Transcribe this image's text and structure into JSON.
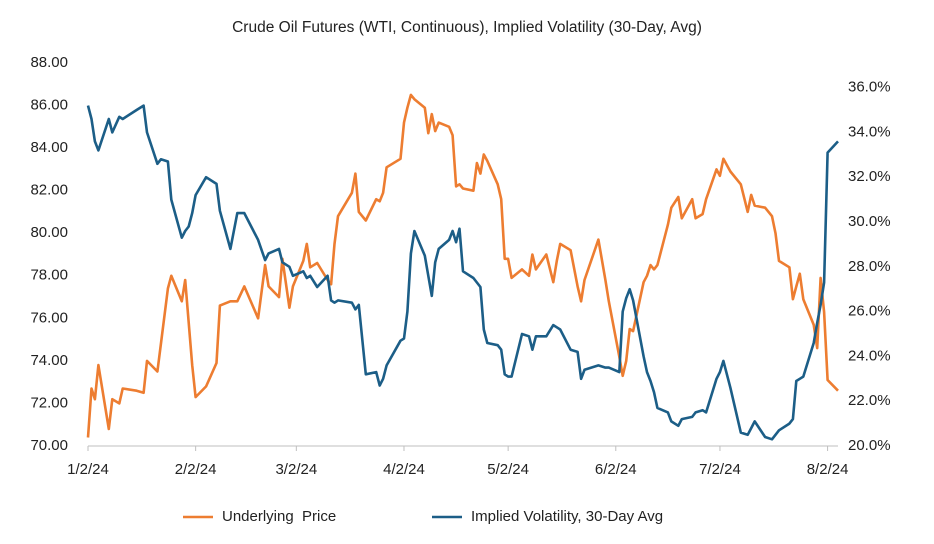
{
  "chart_data": {
    "type": "line",
    "title": "Crude Oil Futures (WTI, Continuous), Implied Volatility  (30-Day, Avg)",
    "x": [
      "1/2/24",
      "1/3/24",
      "1/4/24",
      "1/5/24",
      "1/8/24",
      "1/9/24",
      "1/11/24",
      "1/12/24",
      "1/16/24",
      "1/18/24",
      "1/19/24",
      "1/22/24",
      "1/23/24",
      "1/25/24",
      "1/26/24",
      "1/29/24",
      "1/30/24",
      "1/31/24",
      "2/1/24",
      "2/2/24",
      "2/5/24",
      "2/8/24",
      "2/9/24",
      "2/12/24",
      "2/14/24",
      "2/16/24",
      "2/20/24",
      "2/22/24",
      "2/23/24",
      "2/26/24",
      "2/27/24",
      "2/29/24",
      "3/1/24",
      "3/4/24",
      "3/5/24",
      "3/6/24",
      "3/8/24",
      "3/11/24",
      "3/12/24",
      "3/13/24",
      "3/14/24",
      "3/18/24",
      "3/19/24",
      "3/20/24",
      "3/22/24",
      "3/25/24",
      "3/26/24",
      "3/27/24",
      "3/28/24",
      "4/1/24",
      "4/2/24",
      "4/3/24",
      "4/4/24",
      "4/5/24",
      "4/8/24",
      "4/9/24",
      "4/10/24",
      "4/11/24",
      "4/12/24",
      "4/15/24",
      "4/16/24",
      "4/17/24",
      "4/18/24",
      "4/19/24",
      "4/22/24",
      "4/23/24",
      "4/24/24",
      "4/25/24",
      "4/26/24",
      "4/29/24",
      "4/30/24",
      "5/1/24",
      "5/2/24",
      "5/3/24",
      "5/6/24",
      "5/8/24",
      "5/9/24",
      "5/10/24",
      "5/13/24",
      "5/15/24",
      "5/16/24",
      "5/17/24",
      "5/20/24",
      "5/22/24",
      "5/23/24",
      "5/24/24",
      "5/28/24",
      "5/30/24",
      "5/31/24",
      "6/3/24",
      "6/4/24",
      "6/5/24",
      "6/6/24",
      "6/7/24",
      "6/10/24",
      "6/11/24",
      "6/12/24",
      "6/13/24",
      "6/14/24",
      "6/17/24",
      "6/18/24",
      "6/20/24",
      "6/21/24",
      "6/24/24",
      "6/25/24",
      "6/27/24",
      "6/28/24",
      "7/1/24",
      "7/2/24",
      "7/3/24",
      "7/5/24",
      "7/8/24",
      "7/10/24",
      "7/11/24",
      "7/12/24",
      "7/15/24",
      "7/17/24",
      "7/18/24",
      "7/19/24",
      "7/22/24",
      "7/23/24",
      "7/24/24",
      "7/25/24",
      "7/26/24",
      "7/29/24",
      "7/30/24",
      "7/31/24",
      "8/1/24",
      "8/2/24",
      "8/5/24"
    ],
    "series": [
      {
        "name": "Underlying  Price",
        "color": "#ed7d31",
        "axis": "y",
        "values": [
          70.4,
          72.7,
          72.2,
          73.8,
          70.8,
          72.2,
          72.0,
          72.7,
          72.6,
          72.5,
          74.0,
          73.5,
          74.8,
          77.4,
          78.0,
          76.8,
          77.8,
          75.8,
          73.8,
          72.3,
          72.8,
          73.9,
          76.6,
          76.8,
          76.8,
          77.5,
          76.0,
          78.5,
          77.5,
          77.0,
          78.8,
          76.5,
          77.5,
          78.7,
          79.5,
          78.4,
          78.6,
          77.8,
          77.6,
          79.5,
          80.8,
          81.9,
          82.8,
          81.0,
          80.6,
          81.6,
          81.5,
          81.9,
          83.1,
          83.5,
          85.2,
          85.9,
          86.5,
          86.3,
          85.9,
          84.7,
          85.6,
          84.8,
          85.2,
          85.0,
          84.6,
          82.2,
          82.3,
          82.1,
          82.0,
          83.3,
          82.8,
          83.7,
          83.4,
          82.3,
          81.6,
          78.8,
          78.8,
          77.9,
          78.3,
          78.0,
          79.0,
          78.3,
          79.0,
          77.7,
          78.7,
          79.5,
          79.2,
          77.5,
          76.8,
          77.8,
          79.7,
          77.8,
          76.8,
          74.2,
          73.3,
          74.0,
          75.5,
          75.4,
          77.7,
          78.0,
          78.5,
          78.3,
          78.5,
          80.4,
          81.2,
          81.7,
          80.7,
          81.6,
          80.7,
          80.9,
          81.6,
          83.0,
          82.7,
          83.5,
          82.9,
          82.3,
          81.0,
          81.8,
          81.3,
          81.2,
          80.8,
          80.0,
          78.7,
          78.4,
          76.9,
          77.5,
          78.1,
          76.9,
          75.7,
          74.6,
          77.9,
          76.3,
          73.1,
          72.6
        ]
      },
      {
        "name": "Implied Volatility, 30-Day Avg",
        "color": "#1c5e87",
        "axis": "y2",
        "values": [
          35.2,
          34.6,
          33.6,
          33.2,
          34.6,
          34.0,
          34.7,
          34.6,
          35.0,
          35.2,
          34.0,
          32.6,
          32.8,
          32.7,
          31.0,
          29.3,
          29.6,
          29.8,
          30.4,
          31.2,
          32.0,
          31.7,
          30.5,
          28.8,
          30.4,
          30.4,
          29.2,
          28.3,
          28.6,
          28.8,
          28.2,
          28.0,
          27.6,
          27.8,
          27.5,
          27.6,
          27.1,
          27.6,
          26.5,
          26.4,
          26.5,
          26.4,
          26.1,
          26.3,
          23.2,
          23.3,
          22.7,
          23.0,
          23.6,
          24.7,
          24.8,
          26.0,
          28.6,
          29.6,
          28.5,
          27.6,
          26.7,
          28.2,
          28.8,
          29.2,
          29.6,
          29.1,
          29.7,
          27.8,
          27.5,
          27.3,
          27.1,
          25.2,
          24.6,
          24.5,
          24.3,
          23.2,
          23.1,
          23.1,
          25.0,
          24.9,
          24.3,
          24.9,
          24.9,
          25.4,
          25.3,
          25.2,
          24.3,
          24.2,
          23.0,
          23.4,
          23.6,
          23.5,
          23.5,
          23.3,
          26.0,
          26.6,
          27.0,
          26.5,
          24.0,
          23.3,
          22.9,
          22.4,
          21.7,
          21.5,
          21.1,
          20.9,
          21.2,
          21.3,
          21.5,
          21.6,
          21.5,
          23.0,
          23.3,
          23.8,
          22.6,
          20.6,
          20.5,
          20.8,
          21.1,
          20.4,
          20.3,
          20.5,
          20.7,
          21.0,
          21.2,
          22.9,
          23.0,
          23.1,
          24.6,
          25.5,
          26.3,
          27.3,
          33.1,
          33.6
        ]
      }
    ],
    "xlim": [
      "1/2/24",
      "8/5/24"
    ],
    "xticks": [
      "1/2/24",
      "2/2/24",
      "3/2/24",
      "4/2/24",
      "5/2/24",
      "6/2/24",
      "7/2/24",
      "8/2/24"
    ],
    "ylim": [
      70,
      88
    ],
    "yticks": [
      {
        "value": 70,
        "label": "70.00"
      },
      {
        "value": 72,
        "label": "72.00"
      },
      {
        "value": 74,
        "label": "74.00"
      },
      {
        "value": 76,
        "label": "76.00"
      },
      {
        "value": 78,
        "label": "78.00"
      },
      {
        "value": 80,
        "label": "80.00"
      },
      {
        "value": 82,
        "label": "82.00"
      },
      {
        "value": 84,
        "label": "84.00"
      },
      {
        "value": 86,
        "label": "86.00"
      },
      {
        "value": 88,
        "label": "88.00"
      }
    ],
    "y2lim": [
      20,
      37.1
    ],
    "y2ticks": [
      {
        "value": 20,
        "label": "20.0%"
      },
      {
        "value": 22,
        "label": "22.0%"
      },
      {
        "value": 24,
        "label": "24.0%"
      },
      {
        "value": 26,
        "label": "26.0%"
      },
      {
        "value": 28,
        "label": "28.0%"
      },
      {
        "value": 30,
        "label": "30.0%"
      },
      {
        "value": 32,
        "label": "32.0%"
      },
      {
        "value": 34,
        "label": "34.0%"
      },
      {
        "value": 36,
        "label": "36.0%"
      }
    ],
    "grid": false,
    "legend": "bottom"
  }
}
